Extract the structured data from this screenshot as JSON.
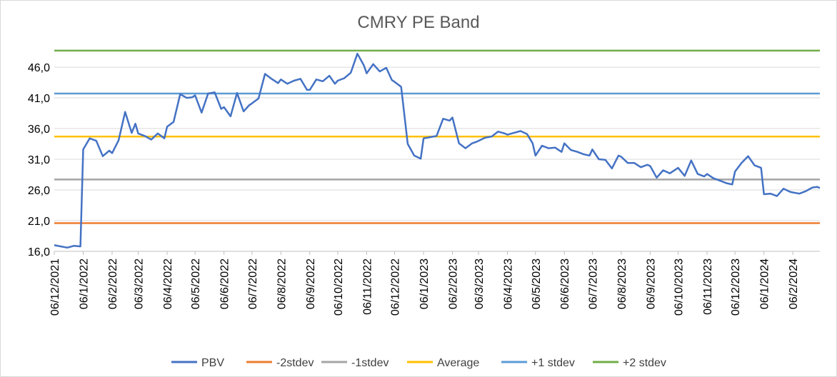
{
  "chart_data": {
    "type": "line",
    "title": "CMRY PE Band",
    "xlabel": "",
    "ylabel": "",
    "ylim": [
      16.0,
      48.8
    ],
    "yticks": [
      "16,0",
      "21,0",
      "26,0",
      "31,0",
      "36,0",
      "41,0",
      "46,0"
    ],
    "x_range": [
      "06/12/2021",
      "06/03/2024"
    ],
    "x_ticks": [
      "06/12/2021",
      "06/1/2022",
      "06/2/2022",
      "06/3/2022",
      "06/4/2022",
      "06/5/2022",
      "06/6/2022",
      "06/7/2022",
      "06/8/2022",
      "06/9/2022",
      "06/10/2022",
      "06/11/2022",
      "06/12/2022",
      "06/1/2023",
      "06/2/2023",
      "06/3/2023",
      "06/4/2023",
      "06/5/2023",
      "06/6/2023",
      "06/7/2023",
      "06/8/2023",
      "06/9/2023",
      "06/10/2023",
      "06/11/2023",
      "06/12/2023",
      "06/1/2024",
      "06/2/2024"
    ],
    "grid": true,
    "legend_position": "bottom",
    "series": [
      {
        "name": "PBV",
        "color": "#4472c4",
        "x": [
          "06/12/2021",
          "13/12/2021",
          "20/12/2021",
          "27/12/2021",
          "03/1/2022",
          "06/1/2022",
          "13/1/2022",
          "20/1/2022",
          "27/1/2022",
          "03/2/2022",
          "06/2/2022",
          "13/2/2022",
          "20/2/2022",
          "27/2/2022",
          "03/3/2022",
          "06/3/2022",
          "13/3/2022",
          "20/3/2022",
          "27/3/2022",
          "03/4/2022",
          "06/4/2022",
          "13/4/2022",
          "20/4/2022",
          "27/4/2022",
          "03/5/2022",
          "06/5/2022",
          "13/5/2022",
          "20/5/2022",
          "27/5/2022",
          "03/6/2022",
          "06/6/2022",
          "13/6/2022",
          "20/6/2022",
          "27/6/2022",
          "03/7/2022",
          "06/7/2022",
          "13/7/2022",
          "20/7/2022",
          "27/7/2022",
          "03/8/2022",
          "06/8/2022",
          "13/8/2022",
          "20/8/2022",
          "27/8/2022",
          "03/9/2022",
          "06/9/2022",
          "13/9/2022",
          "20/9/2022",
          "27/9/2022",
          "03/10/2022",
          "06/10/2022",
          "13/10/2022",
          "20/10/2022",
          "27/10/2022",
          "03/11/2022",
          "06/11/2022",
          "13/11/2022",
          "20/11/2022",
          "27/11/2022",
          "03/12/2022",
          "06/12/2022",
          "13/12/2022",
          "20/12/2022",
          "27/12/2022",
          "03/1/2023",
          "06/1/2023",
          "13/1/2023",
          "20/1/2023",
          "27/1/2023",
          "03/2/2023",
          "06/2/2023",
          "13/2/2023",
          "20/2/2023",
          "27/2/2023",
          "03/3/2023",
          "06/3/2023",
          "13/3/2023",
          "20/3/2023",
          "27/3/2023",
          "03/4/2023",
          "06/4/2023",
          "13/4/2023",
          "20/4/2023",
          "27/4/2023",
          "03/5/2023",
          "06/5/2023",
          "13/5/2023",
          "20/5/2023",
          "27/5/2023",
          "03/6/2023",
          "06/6/2023",
          "13/6/2023",
          "20/6/2023",
          "27/6/2023",
          "03/7/2023",
          "06/7/2023",
          "13/7/2023",
          "20/7/2023",
          "27/7/2023",
          "03/8/2023",
          "06/8/2023",
          "13/8/2023",
          "20/8/2023",
          "27/8/2023",
          "03/9/2023",
          "06/9/2023",
          "13/9/2023",
          "20/9/2023",
          "27/9/2023",
          "03/10/2023",
          "06/10/2023",
          "13/10/2023",
          "20/10/2023",
          "27/10/2023",
          "03/11/2023",
          "06/11/2023",
          "13/11/2023",
          "20/11/2023",
          "27/11/2023",
          "03/12/2023",
          "06/12/2023",
          "13/12/2023",
          "20/12/2023",
          "27/12/2023",
          "03/1/2024",
          "06/1/2024",
          "13/1/2024",
          "20/1/2024",
          "27/1/2024",
          "03/2/2024",
          "06/2/2024",
          "13/2/2024",
          "20/2/2024",
          "27/2/2024",
          "03/3/2024",
          "06/3/2024"
        ],
        "values": [
          17.0,
          16.8,
          16.6,
          16.9,
          16.8,
          32.6,
          34.4,
          34.0,
          31.5,
          32.4,
          32.0,
          34.1,
          38.7,
          35.3,
          36.8,
          35.2,
          34.8,
          34.2,
          35.2,
          34.4,
          36.3,
          37.1,
          41.6,
          41.0,
          41.1,
          41.4,
          38.6,
          41.7,
          41.9,
          39.2,
          39.5,
          38.0,
          41.8,
          38.8,
          39.8,
          40.1,
          40.9,
          44.9,
          44.1,
          43.4,
          44.0,
          43.3,
          43.8,
          44.1,
          42.3,
          42.3,
          44.0,
          43.7,
          44.6,
          43.3,
          43.8,
          44.2,
          45.1,
          48.2,
          46.3,
          45.0,
          46.5,
          45.3,
          45.9,
          43.9,
          43.6,
          42.8,
          33.5,
          31.6,
          31.1,
          34.4,
          34.6,
          34.8,
          37.6,
          37.3,
          37.8,
          33.6,
          32.8,
          33.6,
          33.8,
          34.0,
          34.5,
          34.7,
          35.5,
          35.2,
          35.0,
          35.3,
          35.6,
          35.1,
          33.6,
          31.6,
          33.2,
          32.8,
          32.9,
          32.2,
          33.6,
          32.5,
          32.2,
          31.8,
          31.6,
          32.6,
          31.0,
          30.9,
          29.5,
          31.6,
          31.4,
          30.4,
          30.4,
          29.7,
          30.1,
          29.9,
          28.0,
          29.2,
          28.7,
          29.3,
          29.6,
          28.3,
          30.8,
          28.6,
          28.2,
          28.6,
          27.9,
          27.5,
          27.1,
          26.9,
          29.0,
          30.4,
          31.5,
          30.0,
          29.6,
          25.3,
          25.4,
          25.0,
          26.2,
          25.7,
          25.6,
          25.4,
          25.8,
          26.4,
          26.5,
          26.3
        ]
      },
      {
        "name": "-2stdev",
        "color": "#ed7d31",
        "value": 20.6
      },
      {
        "name": "-1stdev",
        "color": "#a5a5a5",
        "value": 27.7
      },
      {
        "name": "Average",
        "color": "#ffc000",
        "value": 34.7
      },
      {
        "name": "+1 stdev",
        "color": "#5b9bd5",
        "value": 41.7
      },
      {
        "name": "+2 stdev",
        "color": "#70ad47",
        "value": 48.7
      }
    ]
  }
}
